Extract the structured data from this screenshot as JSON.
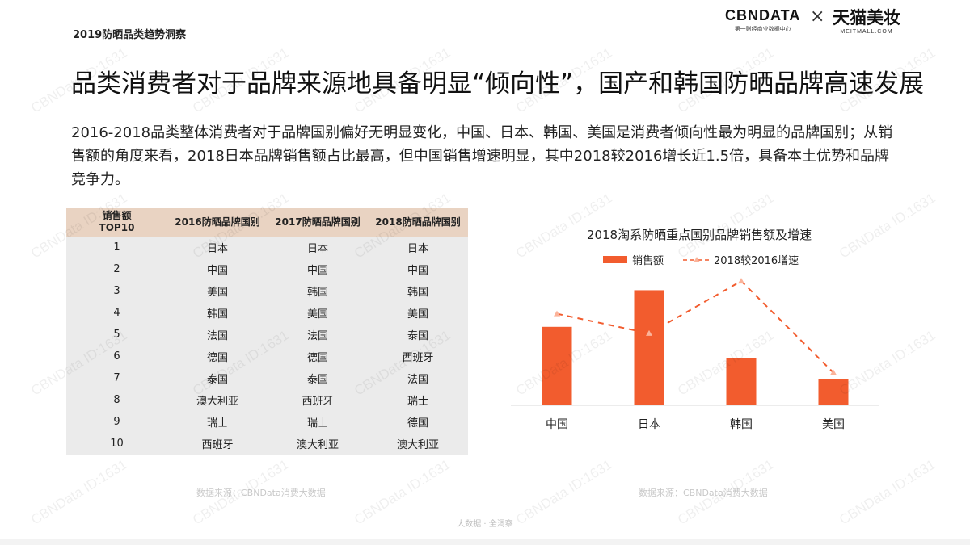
{
  "header": {
    "label": "2019防晒品类趋势洞察",
    "logo_cbn": "CBNDATA",
    "logo_cbn_sub": "第一财经商业数据中心",
    "logo_x": "×",
    "logo_tmall": "天猫美妆",
    "logo_tmall_sub": "MEITMALL.COM"
  },
  "headline": "品类消费者对于品牌来源地具备明显“倾向性”，国产和韩国防晒品牌高速发展",
  "description": "2016-2018品类整体消费者对于品牌国别偏好无明显变化，中国、日本、韩国、美国是消费者倾向性最为明显的品牌国别；从销售额的角度来看，2018日本品牌销售额占比最高，但中国销售增速明显，其中2018较2016增长近1.5倍，具备本土优势和品牌竞争力。",
  "table": {
    "headers": [
      "销售额\nTOP10",
      "2016防晒品牌国别",
      "2017防晒品牌国别",
      "2018防晒品牌国别"
    ],
    "rows": [
      [
        "1",
        "日本",
        "日本",
        "日本"
      ],
      [
        "2",
        "中国",
        "中国",
        "中国"
      ],
      [
        "3",
        "美国",
        "韩国",
        "韩国"
      ],
      [
        "4",
        "韩国",
        "美国",
        "美国"
      ],
      [
        "5",
        "法国",
        "法国",
        "泰国"
      ],
      [
        "6",
        "德国",
        "德国",
        "西班牙"
      ],
      [
        "7",
        "泰国",
        "泰国",
        "法国"
      ],
      [
        "8",
        "澳大利亚",
        "西班牙",
        "瑞士"
      ],
      [
        "9",
        "瑞士",
        "瑞士",
        "德国"
      ],
      [
        "10",
        "西班牙",
        "澳大利亚",
        "澳大利亚"
      ]
    ],
    "source": "数据来源：CBNData消费大数据"
  },
  "chart_data": {
    "type": "bar",
    "title": "2018淘系防晒重点国别品牌销售额及增速",
    "categories": [
      "中国",
      "日本",
      "韩国",
      "美国"
    ],
    "series": [
      {
        "name": "销售额",
        "type": "bar",
        "values": [
          0.6,
          0.88,
          0.36,
          0.2
        ]
      },
      {
        "name": "2018较2016增速",
        "type": "line",
        "values": [
          0.7,
          0.55,
          0.95,
          0.25
        ]
      }
    ],
    "ylim": [
      0,
      1
    ],
    "legend": "top",
    "colors": {
      "bar": "#f25c2e",
      "line": "#f25c2e",
      "axis": "#d9d9d9"
    },
    "source": "数据来源：CBNData消费大数据"
  },
  "footer": "大数据 · 全洞察",
  "watermark": "CBNData ID:1631"
}
